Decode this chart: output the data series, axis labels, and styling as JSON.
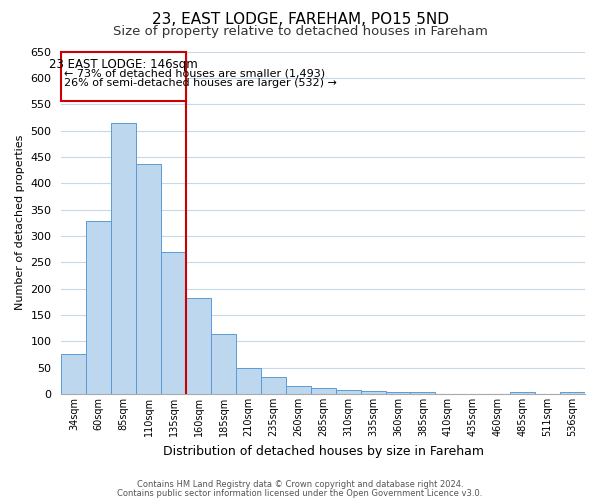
{
  "title": "23, EAST LODGE, FAREHAM, PO15 5ND",
  "subtitle": "Size of property relative to detached houses in Fareham",
  "xlabel": "Distribution of detached houses by size in Fareham",
  "ylabel": "Number of detached properties",
  "bar_labels": [
    "34sqm",
    "60sqm",
    "85sqm",
    "110sqm",
    "135sqm",
    "160sqm",
    "185sqm",
    "210sqm",
    "235sqm",
    "260sqm",
    "285sqm",
    "310sqm",
    "335sqm",
    "360sqm",
    "385sqm",
    "410sqm",
    "435sqm",
    "460sqm",
    "485sqm",
    "511sqm",
    "536sqm"
  ],
  "bar_values": [
    75,
    328,
    515,
    437,
    270,
    182,
    113,
    50,
    32,
    16,
    11,
    7,
    5,
    4,
    3,
    0,
    0,
    0,
    3,
    0,
    3
  ],
  "bar_color": "#bdd7ee",
  "bar_edge_color": "#5b9bd5",
  "vline_x": 4.5,
  "vline_color": "#cc0000",
  "ylim": [
    0,
    650
  ],
  "yticks": [
    0,
    50,
    100,
    150,
    200,
    250,
    300,
    350,
    400,
    450,
    500,
    550,
    600,
    650
  ],
  "annotation_title": "23 EAST LODGE: 146sqm",
  "annotation_line1": "← 73% of detached houses are smaller (1,493)",
  "annotation_line2": "26% of semi-detached houses are larger (532) →",
  "annotation_box_edge": "#cc0000",
  "annotation_box_face": "#ffffff",
  "footer1": "Contains HM Land Registry data © Crown copyright and database right 2024.",
  "footer2": "Contains public sector information licensed under the Open Government Licence v3.0.",
  "bg_color": "#ffffff",
  "grid_color": "#c8d8e8",
  "title_fontsize": 11,
  "subtitle_fontsize": 9.5,
  "ylabel_fontsize": 8,
  "xlabel_fontsize": 9
}
